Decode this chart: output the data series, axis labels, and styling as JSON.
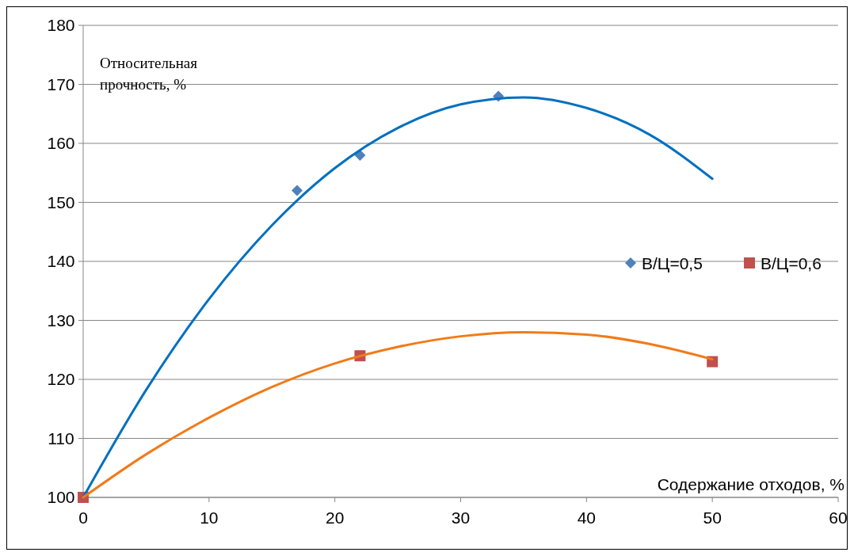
{
  "chart_data": {
    "type": "scatter",
    "xlabel": "Содержание отходов, %",
    "ylabel": "Относительная прочность, %",
    "xlim": [
      0,
      60
    ],
    "xticks": [
      0,
      10,
      20,
      30,
      40,
      50,
      60
    ],
    "ylim": [
      100,
      180
    ],
    "yticks": [
      100,
      110,
      120,
      130,
      140,
      150,
      160,
      170,
      180
    ],
    "grid": "y",
    "legend": "right",
    "series": [
      {
        "name": "В/Ц=0,5",
        "marker": "diamond",
        "color": "#4f81bd",
        "x": [
          17,
          22,
          33
        ],
        "values": [
          152,
          158,
          168
        ]
      },
      {
        "name": "В/Ц=0,6",
        "marker": "square",
        "color": "#c0504d",
        "x": [
          0,
          22,
          50
        ],
        "values": [
          100,
          124,
          123
        ]
      },
      {
        "type": "line",
        "marker": "none",
        "color": "#0070c0",
        "x": [
          0,
          5,
          10,
          15,
          20,
          25,
          30,
          35,
          40,
          45,
          50
        ],
        "values": [
          100,
          118.2,
          133.6,
          146.1,
          155.8,
          162.6,
          166.6,
          167.8,
          166,
          161.5,
          154
        ]
      },
      {
        "type": "line",
        "marker": "none",
        "color": "#f07b1a",
        "x": [
          0,
          5,
          10,
          15,
          20,
          25,
          30,
          35,
          40,
          45,
          50
        ],
        "values": [
          100,
          107.3,
          113.5,
          118.7,
          122.7,
          125.5,
          127.3,
          128,
          127.6,
          126,
          123.4
        ]
      }
    ]
  }
}
